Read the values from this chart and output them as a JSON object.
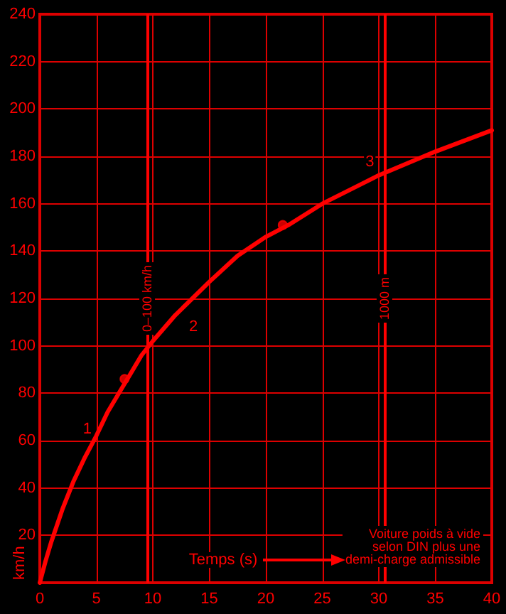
{
  "chart_data": {
    "type": "line",
    "xlabel": "Temps (s)",
    "ylabel": "km/h",
    "x": [
      0,
      0.5,
      1,
      2,
      3,
      4,
      5,
      6,
      7,
      8,
      9,
      10,
      12,
      15,
      17.5,
      20,
      22,
      25,
      30,
      35,
      40
    ],
    "series": [
      {
        "color": "#ff0000",
        "values": [
          0,
          9,
          17,
          31,
          43,
          53,
          62,
          72,
          80,
          88,
          96,
          102,
          113,
          127,
          138,
          146,
          151,
          160,
          172,
          182,
          191
        ]
      },
      {
        "type": "scatter",
        "color": "#ff0000",
        "marker": "circle",
        "x": [
          7.5,
          21.5
        ],
        "values": [
          86,
          151
        ]
      }
    ],
    "marker": "none",
    "line_style": "solid",
    "xlim": [
      0,
      40
    ],
    "xticks": [
      0,
      5,
      10,
      15,
      20,
      25,
      30,
      35,
      40
    ],
    "ylim": [
      0,
      240
    ],
    "yticks": [
      {
        "value": 0,
        "label": null
      },
      20,
      40,
      60,
      80,
      100,
      120,
      140,
      160,
      180,
      200,
      220,
      240
    ],
    "grid": true,
    "ref_lines": [
      {
        "axis": "x",
        "value": 9.5,
        "label": "0–100 km/h"
      },
      {
        "axis": "x",
        "value": 30.5,
        "label": "1000 m"
      }
    ],
    "annotations": [
      "1",
      "2",
      "3",
      "Voiture poids à vide\nselon DIN plus une\ndemi-charge admissible"
    ]
  }
}
